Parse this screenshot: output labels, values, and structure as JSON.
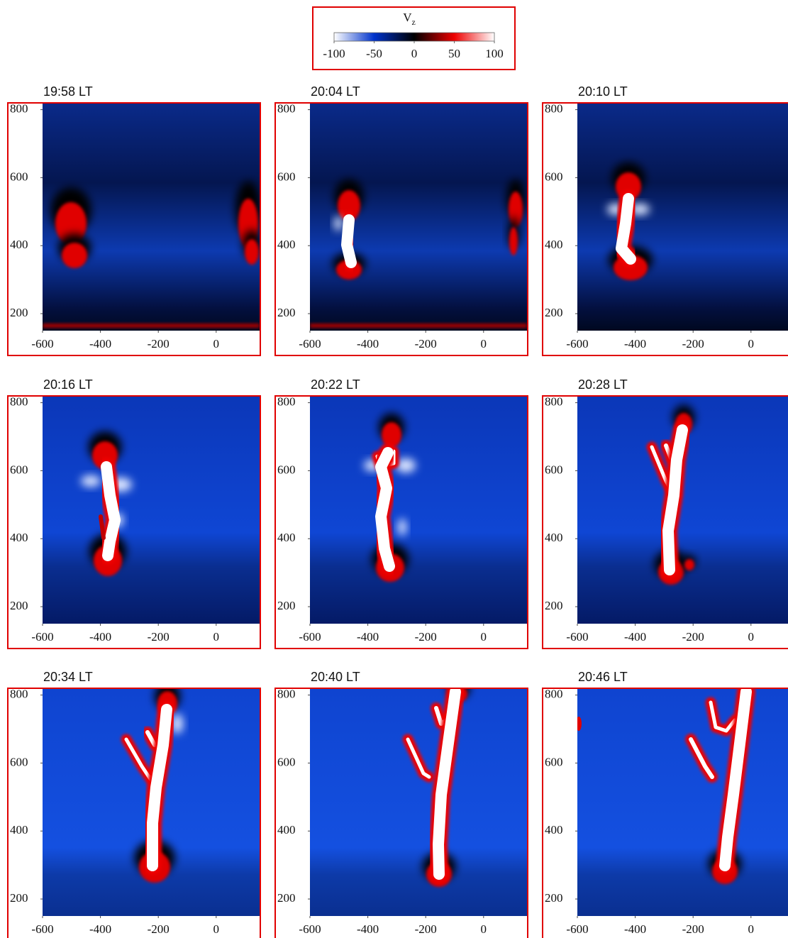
{
  "chart_data": [
    {
      "type": "colorbar",
      "title": "V",
      "title_subscript": "z",
      "clim": [
        -100,
        100
      ],
      "ticks": [
        -100,
        -50,
        0,
        50,
        100
      ],
      "colors": [
        "#ffffff",
        "#0033cc",
        "#000000",
        "#ee0000",
        "#ffffff"
      ]
    },
    {
      "type": "heatmap",
      "title": "19:58 LT",
      "xlim": [
        -600,
        150
      ],
      "ylim": [
        150,
        820
      ],
      "xticks": [
        -600,
        -400,
        -200,
        0
      ],
      "yticks": [
        200,
        400,
        600,
        800
      ]
    },
    {
      "type": "heatmap",
      "title": "20:04 LT",
      "xlim": [
        -600,
        150
      ],
      "ylim": [
        150,
        820
      ],
      "xticks": [
        -600,
        -400,
        -200,
        0
      ],
      "yticks": [
        200,
        400,
        600,
        800
      ]
    },
    {
      "type": "heatmap",
      "title": "20:10 LT",
      "xlim": [
        -600,
        150
      ],
      "ylim": [
        150,
        820
      ],
      "xticks": [
        -600,
        -400,
        -200,
        0
      ],
      "yticks": [
        200,
        400,
        600,
        800
      ]
    },
    {
      "type": "heatmap",
      "title": "20:16 LT",
      "xlim": [
        -600,
        150
      ],
      "ylim": [
        150,
        820
      ],
      "xticks": [
        -600,
        -400,
        -200,
        0
      ],
      "yticks": [
        200,
        400,
        600,
        800
      ]
    },
    {
      "type": "heatmap",
      "title": "20:22 LT",
      "xlim": [
        -600,
        150
      ],
      "ylim": [
        150,
        820
      ],
      "xticks": [
        -600,
        -400,
        -200,
        0
      ],
      "yticks": [
        200,
        400,
        600,
        800
      ]
    },
    {
      "type": "heatmap",
      "title": "20:28 LT",
      "xlim": [
        -600,
        150
      ],
      "ylim": [
        150,
        820
      ],
      "xticks": [
        -600,
        -400,
        -200,
        0
      ],
      "yticks": [
        200,
        400,
        600,
        800
      ]
    },
    {
      "type": "heatmap",
      "title": "20:34 LT",
      "xlim": [
        -600,
        150
      ],
      "ylim": [
        150,
        820
      ],
      "xticks": [
        -600,
        -400,
        -200,
        0
      ],
      "yticks": [
        200,
        400,
        600,
        800
      ]
    },
    {
      "type": "heatmap",
      "title": "20:40 LT",
      "xlim": [
        -600,
        150
      ],
      "ylim": [
        150,
        820
      ],
      "xticks": [
        -600,
        -400,
        -200,
        0
      ],
      "yticks": [
        200,
        400,
        600,
        800
      ]
    },
    {
      "type": "heatmap",
      "title": "20:46 LT",
      "xlim": [
        -600,
        150
      ],
      "ylim": [
        150,
        820
      ],
      "xticks": [
        -600,
        -400,
        -200,
        0
      ],
      "yticks": [
        200,
        400,
        600,
        800
      ]
    }
  ]
}
